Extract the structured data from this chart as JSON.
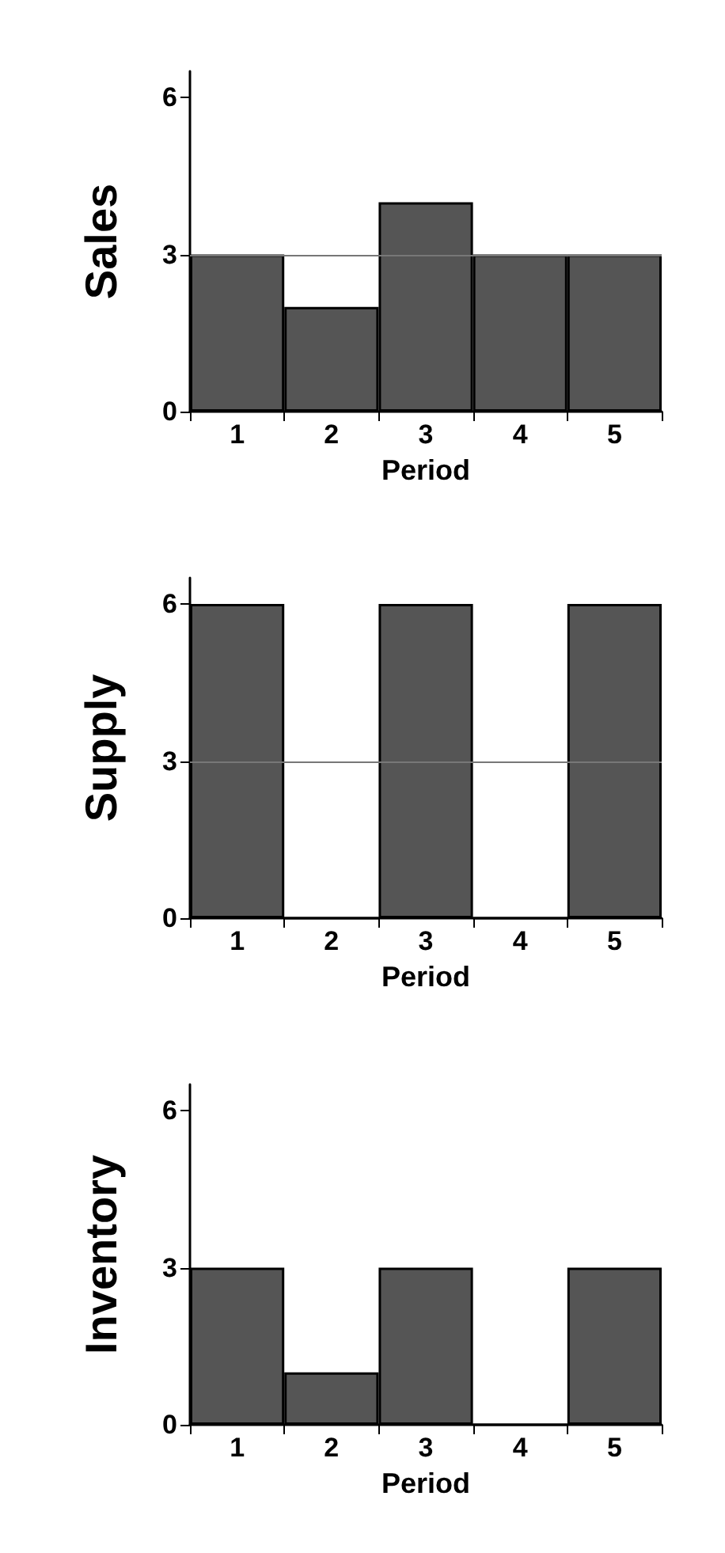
{
  "chart_data": [
    {
      "type": "bar",
      "xlabel": "Period",
      "ylabel": "Sales",
      "categories": [
        "1",
        "2",
        "3",
        "4",
        "5"
      ],
      "values": [
        3,
        2,
        4,
        3,
        3
      ],
      "color": "#555555",
      "ylim": [
        0,
        6.5
      ],
      "yticks": [
        0,
        3,
        6
      ],
      "grid": false,
      "ref_lines": [
        {
          "axis": "y",
          "value": 3,
          "color": "#777777"
        }
      ]
    },
    {
      "type": "bar",
      "xlabel": "Period",
      "ylabel": "Supply",
      "categories": [
        "1",
        "2",
        "3",
        "4",
        "5"
      ],
      "values": [
        6,
        0,
        6,
        0,
        6
      ],
      "color": "#555555",
      "ylim": [
        0,
        6.5
      ],
      "yticks": [
        0,
        3,
        6
      ],
      "grid": false,
      "ref_lines": [
        {
          "axis": "y",
          "value": 3,
          "color": "#777777"
        }
      ]
    },
    {
      "type": "bar",
      "xlabel": "Period",
      "ylabel": "Inventory",
      "categories": [
        "1",
        "2",
        "3",
        "4",
        "5"
      ],
      "values": [
        3,
        1,
        3,
        0,
        3
      ],
      "color": "#555555",
      "ylim": [
        0,
        6.5
      ],
      "yticks": [
        0,
        3,
        6
      ],
      "grid": false
    }
  ]
}
